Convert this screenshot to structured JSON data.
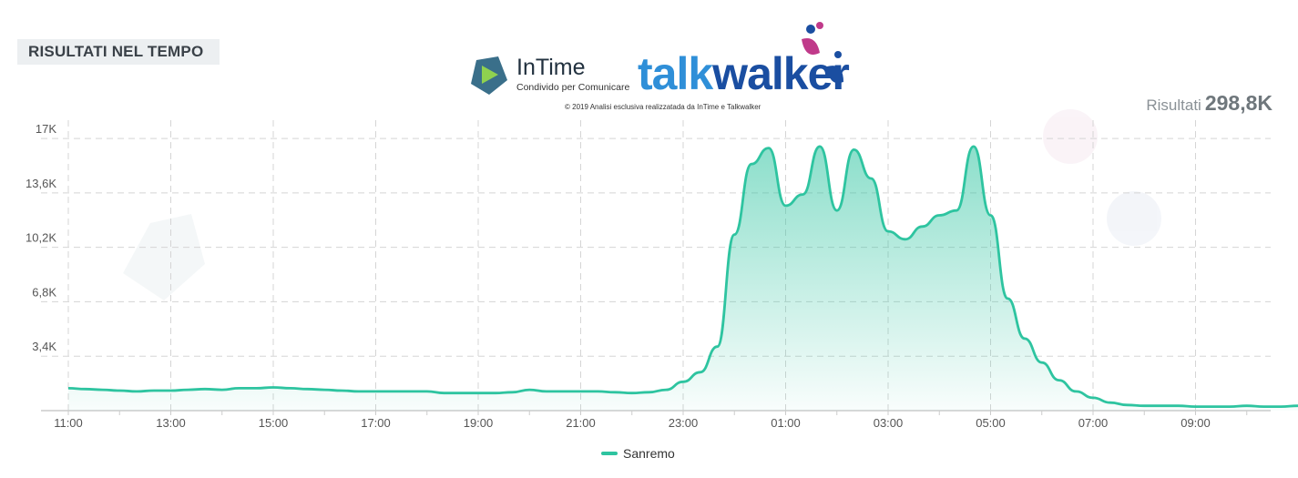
{
  "header": {
    "title": "RISULTATI NEL TEMPO"
  },
  "branding": {
    "intime_name": "InTime",
    "intime_tagline": "Condivido per Comunicare",
    "talkwalker_part1": "talk",
    "talkwalker_part2": "walker",
    "copyright": "2019 Analisi esclusiva realizzatada da InTime e Talkwalker"
  },
  "summary": {
    "label": "Risultati",
    "value": "298,8K"
  },
  "colors": {
    "series": "#2ec4a0",
    "grid": "#d5d5d5"
  },
  "chart_data": {
    "type": "area",
    "title": "RISULTATI NEL TEMPO",
    "xlabel": "",
    "ylabel": "",
    "x_tick_labels": [
      "11:00",
      "13:00",
      "15:00",
      "17:00",
      "19:00",
      "21:00",
      "23:00",
      "01:00",
      "03:00",
      "05:00",
      "07:00",
      "09:00"
    ],
    "y_tick_labels": [
      "3,4K",
      "6,8K",
      "10,2K",
      "13,6K",
      "17K"
    ],
    "y_ticks": [
      3400,
      6800,
      10200,
      13600,
      17000
    ],
    "ylim": [
      0,
      17800
    ],
    "x_start_label": "11:00",
    "x_step_minutes": 20,
    "grid": true,
    "legend_position": "bottom",
    "series": [
      {
        "name": "Sanremo",
        "values": [
          1400,
          1350,
          1300,
          1250,
          1200,
          1250,
          1250,
          1300,
          1350,
          1300,
          1400,
          1400,
          1450,
          1400,
          1350,
          1300,
          1250,
          1200,
          1200,
          1200,
          1200,
          1200,
          1100,
          1100,
          1100,
          1100,
          1150,
          1300,
          1200,
          1200,
          1200,
          1200,
          1150,
          1100,
          1150,
          1300,
          1800,
          2400,
          4000,
          11000,
          15400,
          16400,
          12800,
          13500,
          16500,
          12500,
          16300,
          14500,
          11200,
          10700,
          11500,
          12200,
          12500,
          16500,
          12200,
          7000,
          4500,
          3000,
          1900,
          1200,
          800,
          500,
          350,
          300,
          300,
          300,
          250,
          250,
          250,
          300,
          250,
          250,
          300,
          350,
          500,
          600,
          800,
          900,
          900,
          1000,
          1200,
          1250,
          1300,
          1400,
          1500
        ]
      }
    ]
  }
}
